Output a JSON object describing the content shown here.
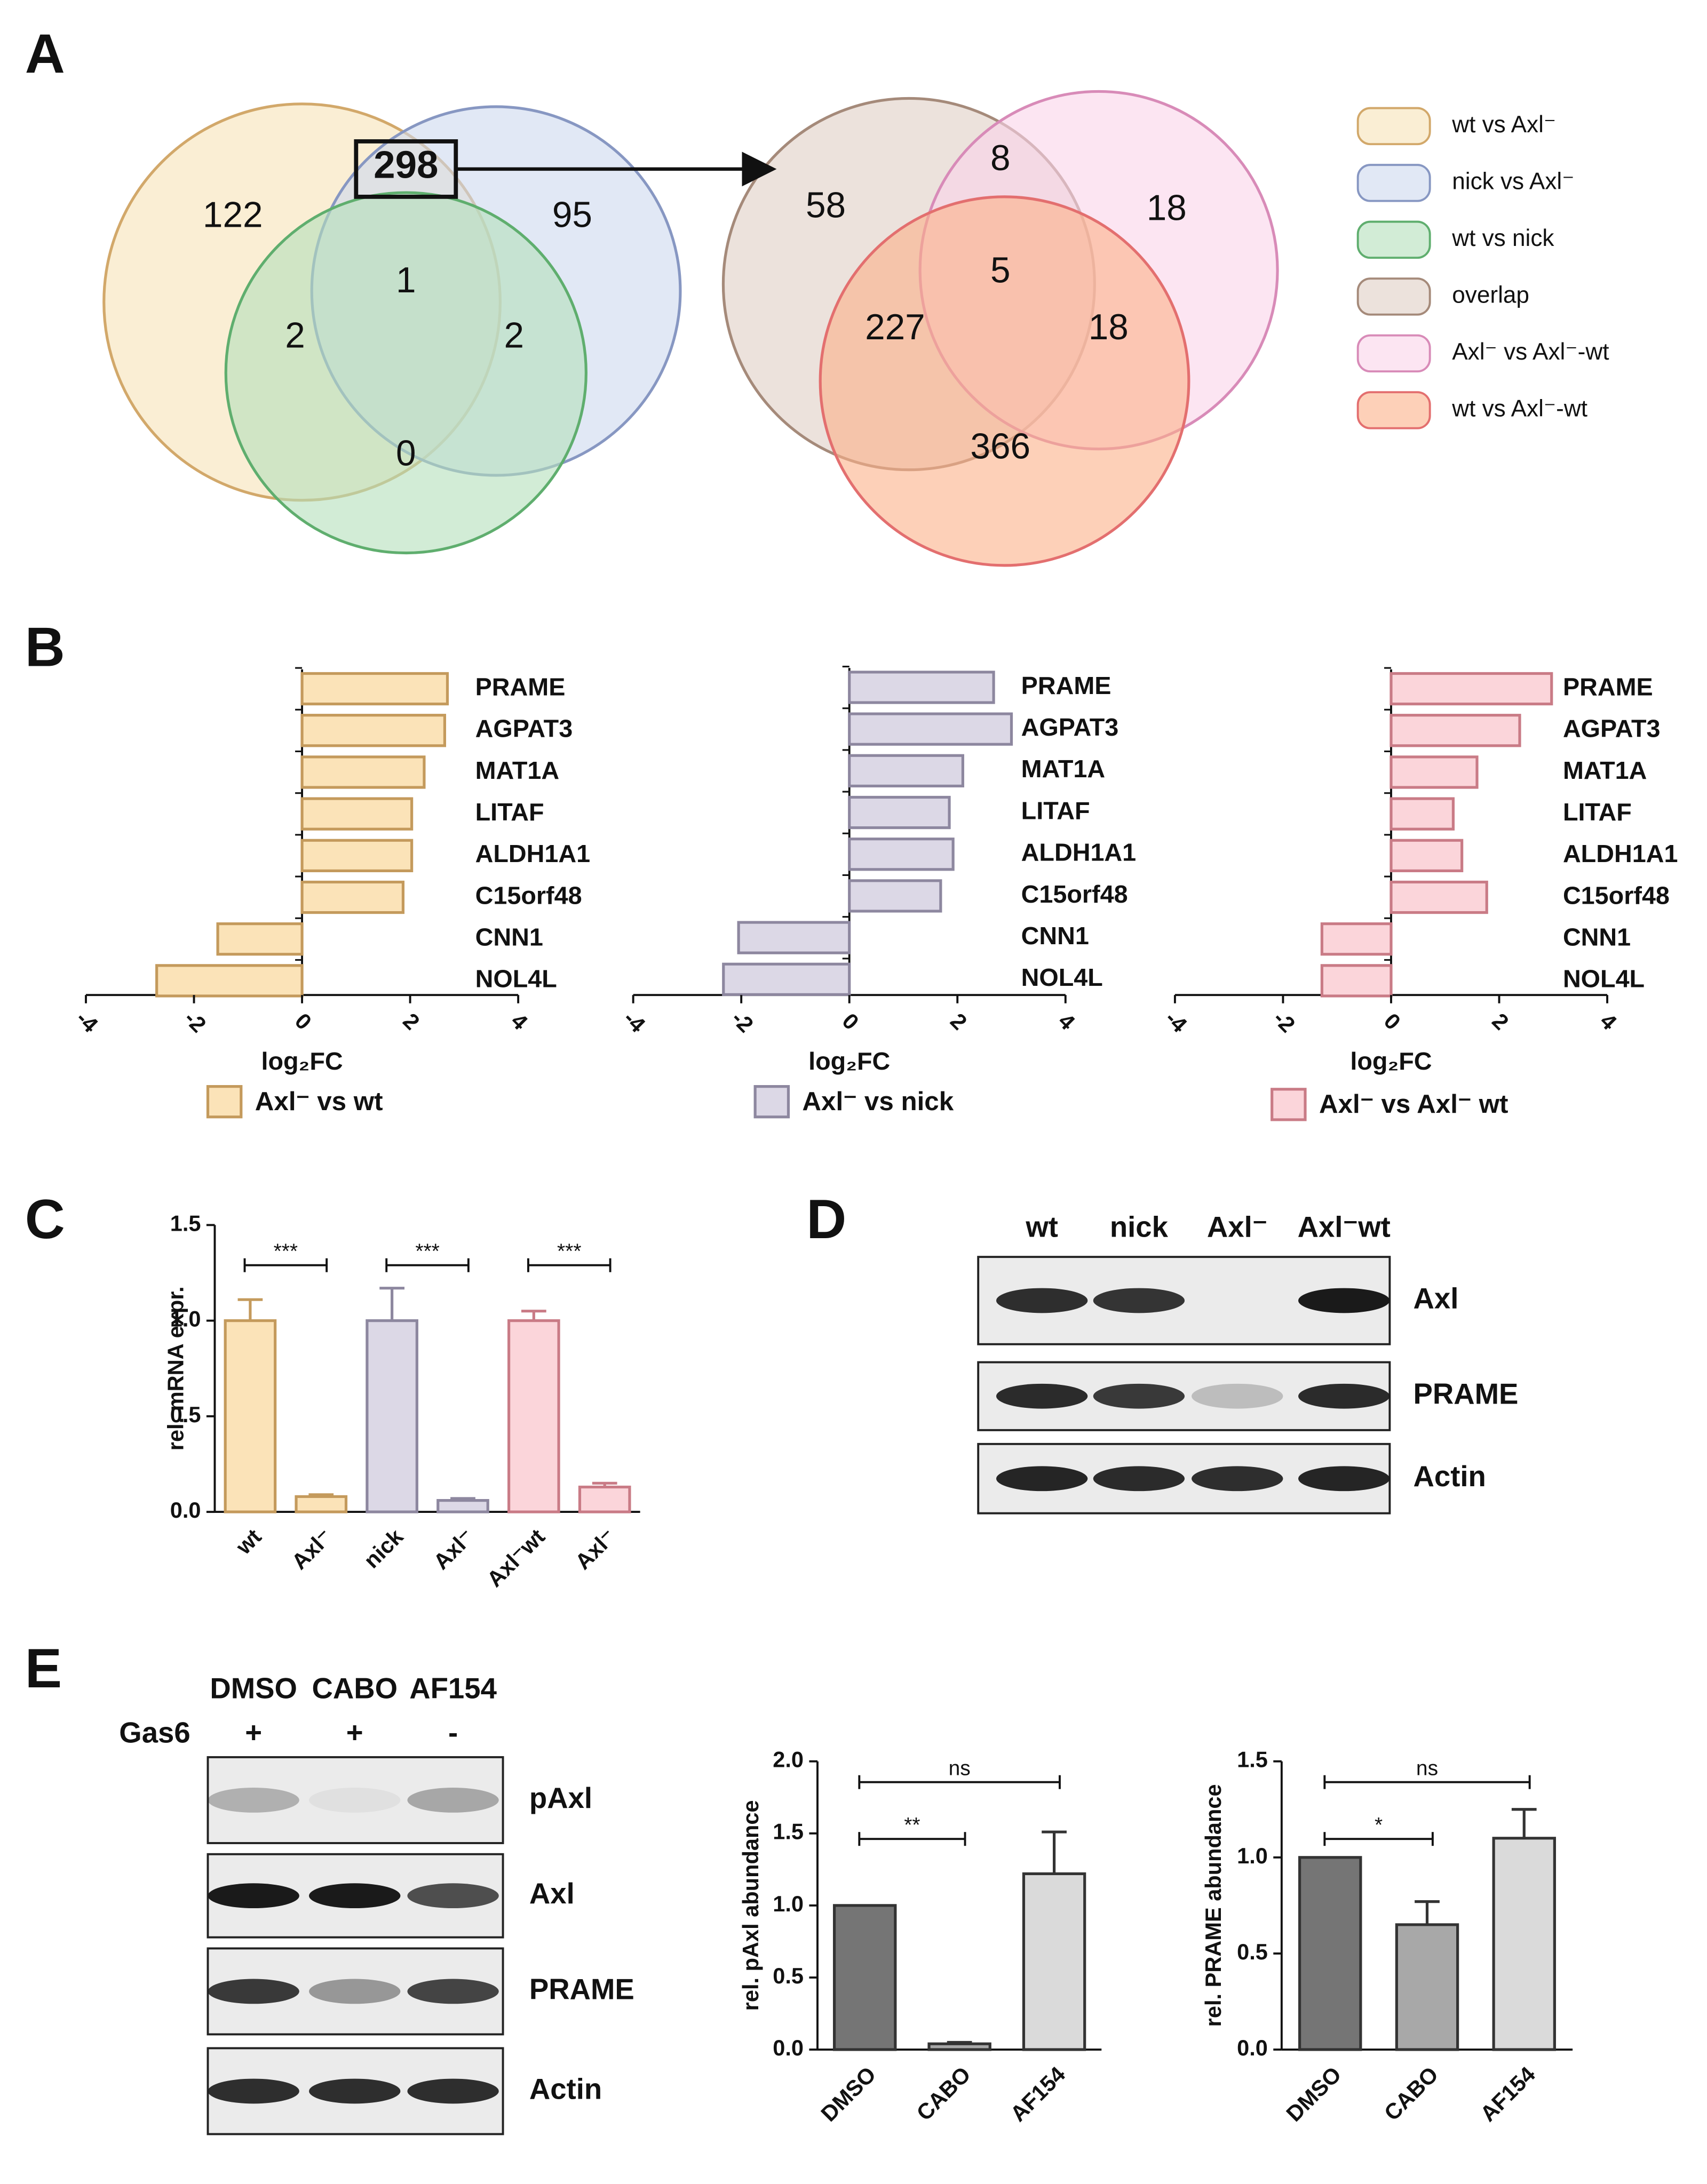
{
  "panel_labels": [
    "A",
    "B",
    "C",
    "D",
    "E"
  ],
  "venn": {
    "legend": [
      {
        "name": "wt vs Axl⁻",
        "color": "#f6e3b8",
        "edge": "#d2a86a"
      },
      {
        "name": "nick vs Axl⁻",
        "color": "#cdd8ee",
        "edge": "#8797c2"
      },
      {
        "name": "wt vs nick",
        "color": "#b4e0ba",
        "edge": "#5fae6e"
      },
      {
        "name": "overlap",
        "color": "#e0cfc4",
        "edge": "#a58a7a"
      },
      {
        "name": "Axl⁻ vs Axl⁻-wt",
        "color": "#fad4ea",
        "edge": "#d88bb8"
      },
      {
        "name": "wt vs Axl⁻-wt",
        "color": "#fbb089",
        "edge": "#e36f6f"
      }
    ],
    "counts": [
      [
        122,
        298,
        95,
        1,
        2,
        2,
        0
      ],
      [
        58,
        8,
        18,
        5,
        227,
        18,
        366
      ]
    ]
  },
  "chart_data": [
    {
      "type": "bar",
      "orientation": "horizontal",
      "categories": [
        "PRAME",
        "AGPAT3",
        "MAT1A",
        "LITAF",
        "ALDH1A1",
        "C15orf48",
        "CNN1",
        "NOL4L"
      ],
      "series": [
        {
          "name": "Axl⁻ vs wt",
          "color": "#fbe3b8",
          "edge": "#c49a5c",
          "values": [
            2.69,
            2.64,
            2.26,
            2.03,
            2.03,
            1.87,
            -1.56,
            -2.69
          ]
        }
      ],
      "xlim": [
        -4,
        4
      ],
      "xticks": [
        -4,
        -2,
        0,
        2,
        4
      ],
      "xlabel": "log₂FC"
    },
    {
      "type": "bar",
      "orientation": "horizontal",
      "categories": [
        "PRAME",
        "AGPAT3",
        "MAT1A",
        "LITAF",
        "ALDH1A1",
        "C15orf48",
        "CNN1",
        "NOL4L"
      ],
      "series": [
        {
          "name": "Axl⁻ vs nick",
          "color": "#dcd8e6",
          "edge": "#8d879f",
          "values": [
            2.67,
            3.0,
            2.1,
            1.85,
            1.92,
            1.69,
            -2.05,
            -2.33
          ]
        }
      ],
      "xlim": [
        -4,
        4
      ],
      "xticks": [
        -4,
        -2,
        0,
        2,
        4
      ],
      "xlabel": "log₂FC"
    },
    {
      "type": "bar",
      "orientation": "horizontal",
      "categories": [
        "PRAME",
        "AGPAT3",
        "MAT1A",
        "LITAF",
        "ALDH1A1",
        "C15orf48",
        "CNN1",
        "NOL4L"
      ],
      "series": [
        {
          "name": "Axl⁻ vs Axl⁻ wt",
          "color": "#fbd5da",
          "edge": "#c97b86",
          "values": [
            2.97,
            2.38,
            1.59,
            1.15,
            1.31,
            1.77,
            -1.28,
            -1.28
          ]
        }
      ],
      "xlim": [
        -4,
        4
      ],
      "xticks": [
        -4,
        -2,
        0,
        2,
        4
      ],
      "xlabel": "log₂FC"
    },
    {
      "type": "bar",
      "orientation": "vertical",
      "categories": [
        "wt",
        "Axl⁻",
        "nick",
        "Axl⁻",
        "Axl⁻wt",
        "Axl⁻"
      ],
      "series": [
        {
          "colors": [
            "#fbe3b8",
            "#fbe3b8",
            "#dcd8e6",
            "#dcd8e6",
            "#fbd5da",
            "#fbd5da"
          ],
          "edges": [
            "#c49a5c",
            "#c49a5c",
            "#8d879f",
            "#8d879f",
            "#c97b86",
            "#c97b86"
          ],
          "values": [
            1.0,
            0.08,
            1.0,
            0.06,
            1.0,
            0.13
          ],
          "errors": [
            0.11,
            0.01,
            0.17,
            0.01,
            0.05,
            0.02
          ]
        }
      ],
      "ylim": [
        0,
        1.5
      ],
      "yticks": [
        {
          "value": 0,
          "label": "0.0"
        },
        0.5,
        {
          "value": 1,
          "label": "1.0"
        },
        1.5
      ],
      "ylabel": "rel. mRNA expr.",
      "annotations": [
        "***",
        "***",
        "***"
      ]
    },
    {
      "type": "bar",
      "orientation": "vertical",
      "categories": [
        "DMSO",
        "CABO",
        "AF154"
      ],
      "series": [
        {
          "colors": [
            "#757575",
            "#a8a8a8",
            "#dadada"
          ],
          "edges": [
            "#333333",
            "#333333",
            "#333333"
          ],
          "values": [
            1.0,
            0.04,
            1.22
          ],
          "errors": [
            null,
            0.01,
            0.29
          ]
        }
      ],
      "ylim": [
        0,
        2
      ],
      "yticks": [
        {
          "value": 0,
          "label": "0.0"
        },
        0.5,
        {
          "value": 1,
          "label": "1.0"
        },
        1.5,
        {
          "value": 2,
          "label": "2.0"
        }
      ],
      "ylabel": "rel. pAxl abundance",
      "annotations": [
        "ns",
        "**"
      ]
    },
    {
      "type": "bar",
      "orientation": "vertical",
      "categories": [
        "DMSO",
        "CABO",
        "AF154"
      ],
      "series": [
        {
          "colors": [
            "#757575",
            "#a8a8a8",
            "#dadada"
          ],
          "edges": [
            "#333333",
            "#333333",
            "#333333"
          ],
          "values": [
            1.0,
            0.65,
            1.1
          ],
          "errors": [
            null,
            0.12,
            0.15
          ]
        }
      ],
      "ylim": [
        0,
        1.5
      ],
      "yticks": [
        {
          "value": 0,
          "label": "0.0"
        },
        0.5,
        {
          "value": 1,
          "label": "1.0"
        },
        1.5
      ],
      "ylabel": "rel. PRAME abundance",
      "annotations": [
        "ns",
        "*"
      ]
    }
  ],
  "blots": [
    {
      "lanes": [
        "wt",
        "nick",
        "Axl⁻",
        "Axl⁻wt"
      ],
      "rows": [
        "Axl",
        "PRAME",
        "Actin"
      ]
    },
    {
      "lanes": [
        "DMSO",
        "CABO",
        "AF154"
      ],
      "treatment_label": "Gas6",
      "treatment": [
        "+",
        "+",
        "-"
      ],
      "rows": [
        "pAxl",
        "Axl",
        "PRAME",
        "Actin"
      ]
    }
  ]
}
